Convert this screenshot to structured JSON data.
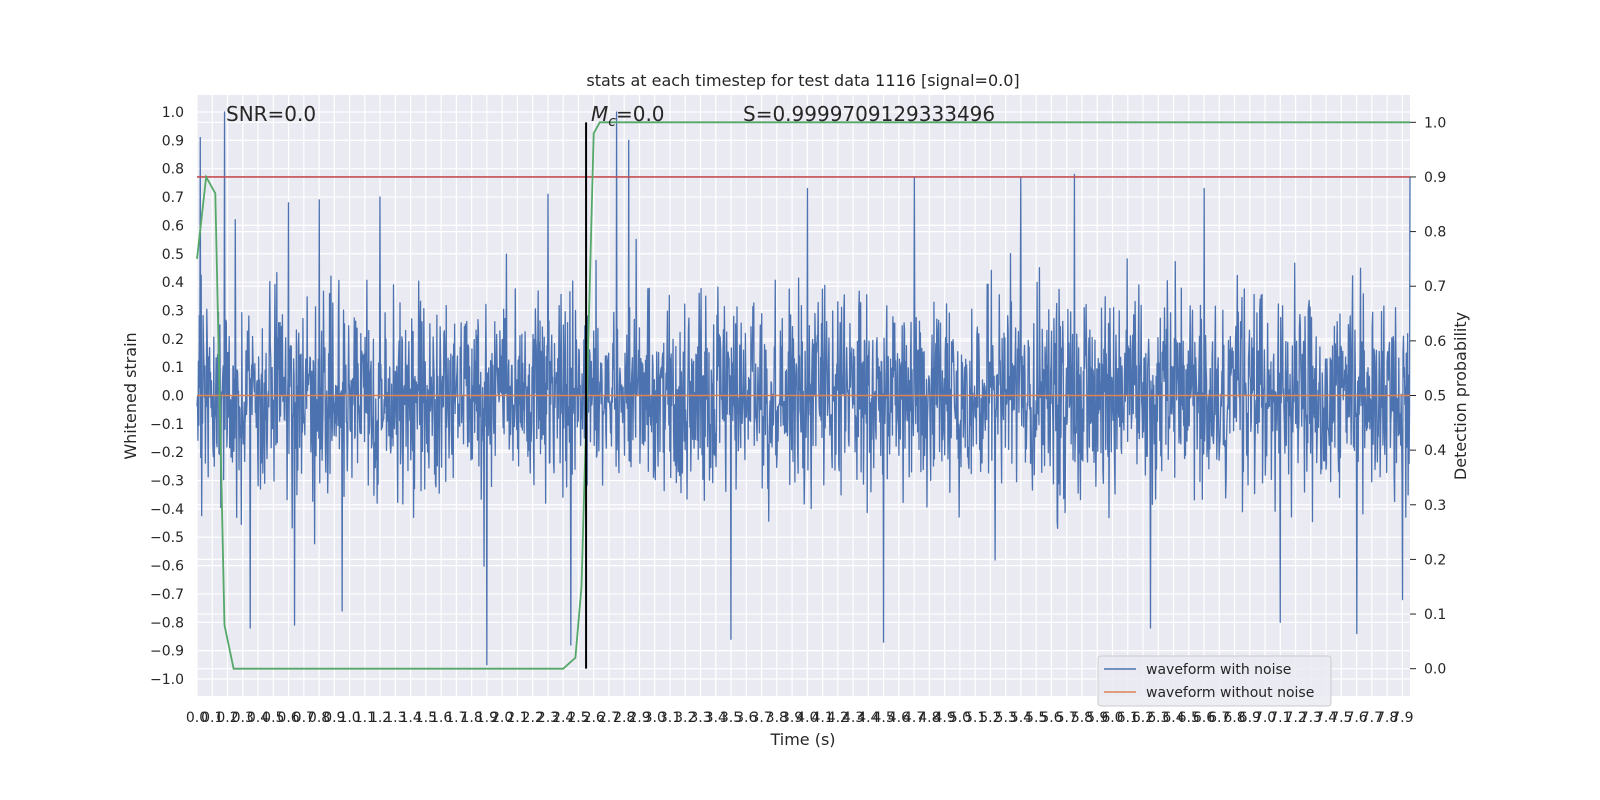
{
  "chart_data": {
    "type": "line",
    "title": "stats at each timestep for test data 1116 [signal=0.0]",
    "xlabel": "Time (s)",
    "ylabel": "Whitened strain",
    "y2label": "Detection probability",
    "xlim": [
      0.0,
      7.95
    ],
    "ylim": [
      -1.06,
      1.06
    ],
    "y2lim": [
      -0.05,
      1.05
    ],
    "x_ticks": [
      0.0,
      0.1,
      0.2,
      0.3,
      0.4,
      0.5,
      0.6,
      0.7,
      0.8,
      0.9,
      1.0,
      1.1,
      1.2,
      1.3,
      1.4,
      1.5,
      1.6,
      1.7,
      1.8,
      1.9,
      2.0,
      2.1,
      2.2,
      2.3,
      2.4,
      2.5,
      2.6,
      2.7,
      2.8,
      2.9,
      3.0,
      3.1,
      3.2,
      3.3,
      3.4,
      3.5,
      3.6,
      3.7,
      3.8,
      3.9,
      4.0,
      4.1,
      4.2,
      4.3,
      4.4,
      4.5,
      4.6,
      4.7,
      4.8,
      4.9,
      5.0,
      5.1,
      5.2,
      5.3,
      5.4,
      5.5,
      5.6,
      5.7,
      5.8,
      5.9,
      6.0,
      6.1,
      6.2,
      6.3,
      6.4,
      6.5,
      6.6,
      6.7,
      6.8,
      6.9,
      7.0,
      7.1,
      7.2,
      7.3,
      7.4,
      7.5,
      7.6,
      7.7,
      7.8,
      7.9
    ],
    "y_ticks": [
      -1.0,
      -0.9,
      -0.8,
      -0.7,
      -0.6,
      -0.5,
      -0.4,
      -0.3,
      -0.2,
      -0.1,
      0.0,
      0.1,
      0.2,
      0.3,
      0.4,
      0.5,
      0.6,
      0.7,
      0.8,
      0.9,
      1.0
    ],
    "y2_ticks": [
      0.0,
      0.1,
      0.2,
      0.3,
      0.4,
      0.5,
      0.6,
      0.7,
      0.8,
      0.9,
      1.0
    ],
    "grid": true,
    "legend_position": "lower-right",
    "annotations": {
      "snr": "SNR=0.0",
      "mc_symbol": "M",
      "mc_sub": "c",
      "mc_value": "=0.0",
      "s_text": "S=0.9999709129333496"
    },
    "series": [
      {
        "name": "waveform with noise",
        "color": "#4c72b0",
        "axis": "left",
        "envelope": {
          "x_range": [
            0.0,
            7.95
          ],
          "typical_abs_max": 0.6,
          "peaks": [
            {
              "x": 0.02,
              "y": 0.91
            },
            {
              "x": 0.18,
              "y": 1.0
            },
            {
              "x": 0.25,
              "y": 0.62
            },
            {
              "x": 0.6,
              "y": 0.68
            },
            {
              "x": 0.8,
              "y": 0.69
            },
            {
              "x": 1.2,
              "y": 0.7
            },
            {
              "x": 1.9,
              "y": 0.79
            },
            {
              "x": 2.3,
              "y": 0.71
            },
            {
              "x": 2.75,
              "y": 1.0
            },
            {
              "x": 2.83,
              "y": 0.9
            },
            {
              "x": 4.0,
              "y": 0.73
            },
            {
              "x": 4.7,
              "y": 0.77
            },
            {
              "x": 5.4,
              "y": 0.77
            },
            {
              "x": 5.75,
              "y": 0.78
            },
            {
              "x": 6.6,
              "y": 0.73
            },
            {
              "x": 7.95,
              "y": 0.77
            }
          ],
          "troughs": [
            {
              "x": 0.35,
              "y": -0.82
            },
            {
              "x": 0.64,
              "y": -0.81
            },
            {
              "x": 0.95,
              "y": -0.76
            },
            {
              "x": 1.9,
              "y": -0.95
            },
            {
              "x": 2.45,
              "y": -0.88
            },
            {
              "x": 3.5,
              "y": -0.86
            },
            {
              "x": 4.5,
              "y": -0.87
            },
            {
              "x": 6.25,
              "y": -0.82
            },
            {
              "x": 7.1,
              "y": -0.8
            },
            {
              "x": 7.6,
              "y": -0.84
            },
            {
              "x": 7.9,
              "y": -0.72
            }
          ]
        }
      },
      {
        "name": "waveform without noise",
        "color": "#dd8452",
        "axis": "left",
        "x": [
          0.0,
          7.95
        ],
        "y": [
          0.0,
          0.0
        ]
      },
      {
        "name": "",
        "color": "#55a868",
        "axis": "right",
        "x": [
          0.0,
          0.06,
          0.12,
          0.18,
          0.24,
          0.6,
          2.4,
          2.48,
          2.52,
          2.56,
          2.6,
          2.64,
          2.7,
          7.95
        ],
        "y": [
          0.75,
          0.9,
          0.87,
          0.08,
          0.0,
          0.0,
          0.0,
          0.02,
          0.15,
          0.55,
          0.98,
          1.0,
          1.0,
          1.0
        ]
      }
    ],
    "reference_lines": [
      {
        "orientation": "horizontal",
        "axis": "right",
        "value": 0.9,
        "color": "#c44e52"
      },
      {
        "orientation": "vertical",
        "value": 2.55,
        "color": "#000000",
        "range_y2": [
          0.0,
          1.0
        ]
      }
    ]
  }
}
